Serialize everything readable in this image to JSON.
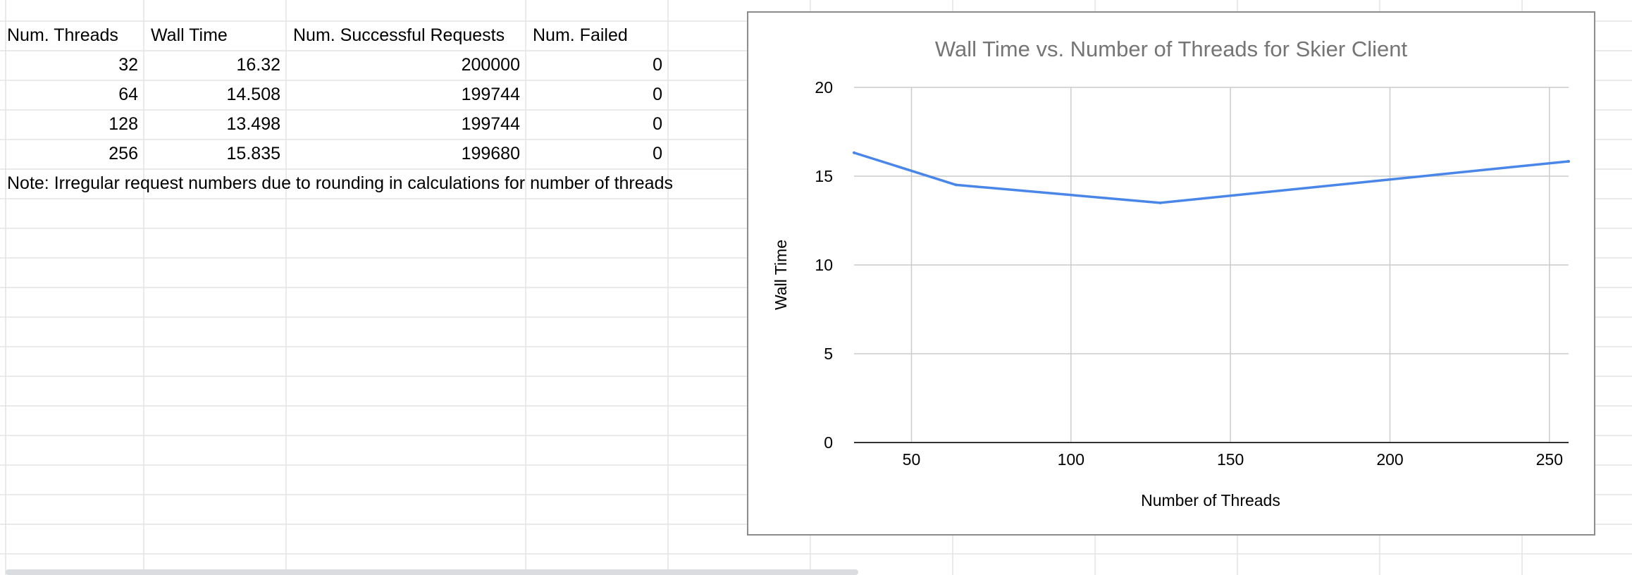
{
  "sheet": {
    "headers": [
      "Num. Threads",
      "Wall Time",
      "Num. Successful Requests",
      "Num. Failed"
    ],
    "rows": [
      [
        "32",
        "16.32",
        "200000",
        "0"
      ],
      [
        "64",
        "14.508",
        "199744",
        "0"
      ],
      [
        "128",
        "13.498",
        "199744",
        "0"
      ],
      [
        "256",
        "15.835",
        "199680",
        "0"
      ]
    ],
    "note": "Note: Irregular request numbers due to rounding in calculations for number of threads"
  },
  "chart_data": {
    "type": "line",
    "title": "Wall Time vs. Number of Threads for Skier Client",
    "xlabel": "Number of Threads",
    "ylabel": "Wall Time",
    "x": [
      32,
      64,
      128,
      256
    ],
    "series": [
      {
        "name": "Wall Time",
        "values": [
          16.32,
          14.508,
          13.498,
          15.835
        ]
      }
    ],
    "xlim": [
      32,
      256
    ],
    "ylim": [
      0,
      20
    ],
    "xticks": [
      50,
      100,
      150,
      200,
      250
    ],
    "yticks": [
      0,
      5,
      10,
      15,
      20
    ],
    "grid": true,
    "line_color": "#4a86e8"
  }
}
